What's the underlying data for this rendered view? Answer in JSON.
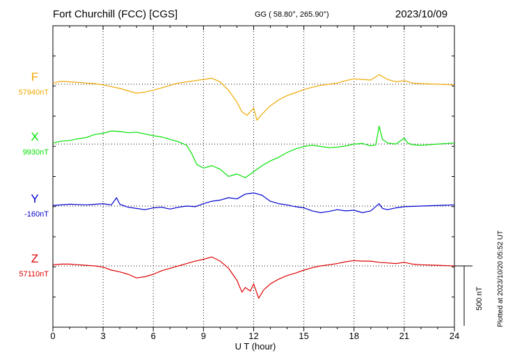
{
  "header": {
    "title": "Fort Churchill (FCC)  [CGS]",
    "coords": "GG ( 58.80°, 265.90°)",
    "date": "2023/10/09"
  },
  "plotted_note": "Plotted at 2023/10/20 05:52 UT",
  "scale_label": "500 nT",
  "chart_data": {
    "type": "line",
    "xlabel": "U T (hour)",
    "ylabel": "",
    "xlim": [
      0,
      24
    ],
    "xticks": [
      0,
      3,
      6,
      9,
      12,
      15,
      18,
      21,
      24
    ],
    "grid": true,
    "scale_bar_nT": 500,
    "series": [
      {
        "name": "F",
        "baseline_label": "57940nT",
        "color": "#f0a800",
        "baseline_nT": 57940,
        "points": [
          [
            0,
            10
          ],
          [
            0.5,
            25
          ],
          [
            1,
            20
          ],
          [
            1.5,
            15
          ],
          [
            2,
            10
          ],
          [
            2.5,
            5
          ],
          [
            3,
            -5
          ],
          [
            3.5,
            -20
          ],
          [
            4,
            -35
          ],
          [
            4.5,
            -55
          ],
          [
            5,
            -75
          ],
          [
            5.5,
            -65
          ],
          [
            6,
            -50
          ],
          [
            6.5,
            -30
          ],
          [
            7,
            -10
          ],
          [
            7.5,
            10
          ],
          [
            8,
            20
          ],
          [
            8.5,
            30
          ],
          [
            9,
            40
          ],
          [
            9.5,
            50
          ],
          [
            10,
            20
          ],
          [
            10.5,
            -50
          ],
          [
            11,
            -150
          ],
          [
            11.3,
            -230
          ],
          [
            11.6,
            -260
          ],
          [
            12,
            -200
          ],
          [
            12.2,
            -300
          ],
          [
            12.5,
            -250
          ],
          [
            13,
            -180
          ],
          [
            13.5,
            -130
          ],
          [
            14,
            -95
          ],
          [
            14.5,
            -70
          ],
          [
            15,
            -45
          ],
          [
            15.5,
            -25
          ],
          [
            16,
            -10
          ],
          [
            16.5,
            0
          ],
          [
            17,
            10
          ],
          [
            17.5,
            30
          ],
          [
            18,
            45
          ],
          [
            18.5,
            40
          ],
          [
            19,
            35
          ],
          [
            19.5,
            80
          ],
          [
            20,
            40
          ],
          [
            20.5,
            20
          ],
          [
            21,
            30
          ],
          [
            21.5,
            10
          ],
          [
            22,
            5
          ],
          [
            23,
            0
          ],
          [
            24,
            -5
          ]
        ]
      },
      {
        "name": "X",
        "baseline_label": "9930nT",
        "color": "#00e000",
        "baseline_nT": 9930,
        "points": [
          [
            0,
            10
          ],
          [
            0.5,
            25
          ],
          [
            1,
            30
          ],
          [
            1.5,
            45
          ],
          [
            2,
            55
          ],
          [
            2.5,
            80
          ],
          [
            3,
            90
          ],
          [
            3.5,
            110
          ],
          [
            4,
            105
          ],
          [
            4.5,
            95
          ],
          [
            5,
            100
          ],
          [
            5.5,
            85
          ],
          [
            6,
            70
          ],
          [
            6.5,
            60
          ],
          [
            7,
            40
          ],
          [
            7.5,
            20
          ],
          [
            8,
            -10
          ],
          [
            8.3,
            -80
          ],
          [
            8.6,
            -170
          ],
          [
            9,
            -200
          ],
          [
            9.5,
            -180
          ],
          [
            10,
            -210
          ],
          [
            10.5,
            -270
          ],
          [
            11,
            -250
          ],
          [
            11.5,
            -280
          ],
          [
            12,
            -230
          ],
          [
            12.5,
            -180
          ],
          [
            13,
            -140
          ],
          [
            13.5,
            -110
          ],
          [
            14,
            -70
          ],
          [
            14.5,
            -40
          ],
          [
            15,
            -20
          ],
          [
            15.5,
            -10
          ],
          [
            16,
            -20
          ],
          [
            16.5,
            -30
          ],
          [
            17,
            -25
          ],
          [
            17.5,
            -15
          ],
          [
            18,
            0
          ],
          [
            18.5,
            5
          ],
          [
            19,
            -15
          ],
          [
            19.3,
            -5
          ],
          [
            19.5,
            150
          ],
          [
            19.7,
            40
          ],
          [
            20,
            10
          ],
          [
            20.5,
            0
          ],
          [
            21,
            50
          ],
          [
            21.2,
            10
          ],
          [
            21.5,
            -5
          ],
          [
            22,
            -10
          ],
          [
            23,
            0
          ],
          [
            24,
            10
          ]
        ]
      },
      {
        "name": "Y",
        "baseline_label": "-160nT",
        "color": "#0000d0",
        "baseline_nT": -160,
        "points": [
          [
            0,
            5
          ],
          [
            1,
            15
          ],
          [
            2,
            10
          ],
          [
            3,
            20
          ],
          [
            3.5,
            10
          ],
          [
            3.8,
            70
          ],
          [
            4,
            15
          ],
          [
            4.5,
            -10
          ],
          [
            5,
            -20
          ],
          [
            5.5,
            -30
          ],
          [
            6,
            -15
          ],
          [
            6.5,
            -10
          ],
          [
            7,
            -25
          ],
          [
            7.5,
            -10
          ],
          [
            8,
            0
          ],
          [
            8.5,
            -5
          ],
          [
            9,
            20
          ],
          [
            9.5,
            40
          ],
          [
            10,
            50
          ],
          [
            10.5,
            70
          ],
          [
            11,
            60
          ],
          [
            11.5,
            100
          ],
          [
            12,
            110
          ],
          [
            12.5,
            90
          ],
          [
            13,
            40
          ],
          [
            13.5,
            20
          ],
          [
            14,
            10
          ],
          [
            14.5,
            -5
          ],
          [
            15,
            -15
          ],
          [
            15.5,
            -40
          ],
          [
            16,
            -55
          ],
          [
            16.5,
            -45
          ],
          [
            17,
            -30
          ],
          [
            17.5,
            -40
          ],
          [
            18,
            -35
          ],
          [
            18.5,
            -55
          ],
          [
            19,
            -40
          ],
          [
            19.5,
            20
          ],
          [
            19.7,
            -20
          ],
          [
            20,
            -30
          ],
          [
            20.5,
            -15
          ],
          [
            21,
            -5
          ],
          [
            22,
            0
          ],
          [
            23,
            5
          ],
          [
            24,
            10
          ]
        ]
      },
      {
        "name": "Z",
        "baseline_label": "57110nT",
        "color": "#e00000",
        "baseline_nT": 57110,
        "points": [
          [
            0,
            10
          ],
          [
            0.5,
            15
          ],
          [
            1,
            15
          ],
          [
            1.5,
            10
          ],
          [
            2,
            5
          ],
          [
            2.5,
            0
          ],
          [
            3,
            -10
          ],
          [
            3.5,
            -35
          ],
          [
            4,
            -50
          ],
          [
            4.5,
            -70
          ],
          [
            5,
            -100
          ],
          [
            5.5,
            -90
          ],
          [
            6,
            -70
          ],
          [
            6.5,
            -40
          ],
          [
            7,
            -20
          ],
          [
            7.5,
            0
          ],
          [
            8,
            20
          ],
          [
            8.5,
            40
          ],
          [
            9,
            55
          ],
          [
            9.5,
            75
          ],
          [
            10,
            40
          ],
          [
            10.5,
            -20
          ],
          [
            11,
            -120
          ],
          [
            11.3,
            -220
          ],
          [
            11.5,
            -180
          ],
          [
            11.8,
            -210
          ],
          [
            12,
            -150
          ],
          [
            12.3,
            -270
          ],
          [
            12.6,
            -200
          ],
          [
            13,
            -150
          ],
          [
            13.5,
            -110
          ],
          [
            14,
            -80
          ],
          [
            14.5,
            -60
          ],
          [
            15,
            -35
          ],
          [
            15.5,
            -15
          ],
          [
            16,
            0
          ],
          [
            16.5,
            10
          ],
          [
            17,
            20
          ],
          [
            17.5,
            35
          ],
          [
            18,
            45
          ],
          [
            18.5,
            40
          ],
          [
            19,
            40
          ],
          [
            19.5,
            30
          ],
          [
            20,
            25
          ],
          [
            20.5,
            20
          ],
          [
            21,
            30
          ],
          [
            21.5,
            15
          ],
          [
            22,
            10
          ],
          [
            23,
            5
          ],
          [
            24,
            0
          ]
        ]
      }
    ]
  }
}
